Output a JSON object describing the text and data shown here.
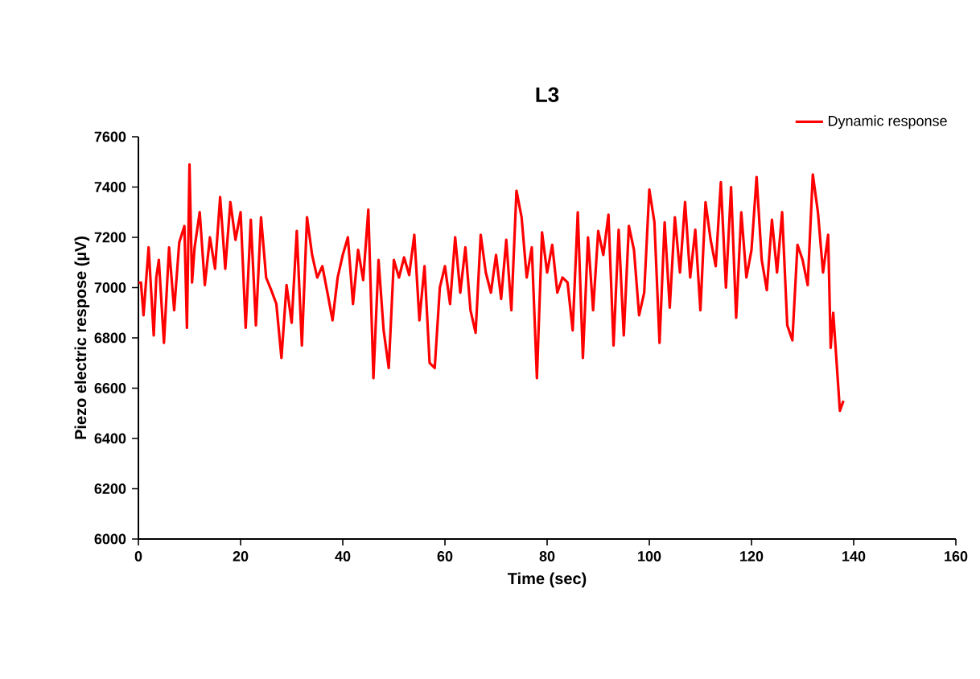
{
  "chart_data": {
    "type": "line",
    "title": "L3",
    "xlabel": "Time (sec)",
    "ylabel": "Piezo electric respose (µV)",
    "xlim": [
      0,
      160
    ],
    "xticks": [
      0,
      20,
      40,
      60,
      80,
      100,
      120,
      140,
      160
    ],
    "ylim": [
      6000,
      7600
    ],
    "yticks": [
      6000,
      6200,
      6400,
      6600,
      6800,
      7000,
      7200,
      7400,
      7600
    ],
    "grid": false,
    "legend": "top right",
    "marker": "none",
    "line_style": "solid",
    "series": [
      {
        "name": "Dynamic response",
        "color": "#ff0000",
        "x": [
          0,
          0.5,
          1,
          2,
          3,
          3.5,
          4,
          5,
          6,
          7,
          8,
          9,
          9.5,
          10,
          10.5,
          11,
          12,
          13,
          14,
          15,
          16,
          17,
          18,
          19,
          20,
          21,
          22,
          23,
          24,
          25,
          26,
          27,
          28,
          29,
          30,
          31,
          32,
          33,
          34,
          35,
          36,
          37,
          38,
          39,
          40,
          41,
          42,
          43,
          44,
          45,
          46,
          47,
          48,
          49,
          50,
          51,
          52,
          53,
          54,
          55,
          56,
          57,
          58,
          59,
          60,
          61,
          62,
          63,
          64,
          65,
          66,
          67,
          68,
          69,
          70,
          71,
          72,
          73,
          74,
          75,
          76,
          77,
          78,
          79,
          80,
          81,
          82,
          83,
          84,
          85,
          86,
          87,
          88,
          89,
          90,
          91,
          92,
          93,
          94,
          95,
          96,
          97,
          98,
          99,
          100,
          101,
          102,
          103,
          104,
          105,
          106,
          107,
          108,
          109,
          110,
          111,
          112,
          113,
          114,
          115,
          116,
          117,
          118,
          119,
          120,
          121,
          122,
          123,
          124,
          125,
          126,
          127,
          128,
          129,
          130,
          131,
          132,
          133,
          134,
          135,
          135.5,
          136,
          137,
          137.3,
          138
        ],
        "values": [
          7020,
          7020,
          6890,
          7160,
          6810,
          7040,
          7110,
          6780,
          7160,
          6910,
          7180,
          7245,
          6840,
          7490,
          7020,
          7160,
          7300,
          7010,
          7200,
          7075,
          7360,
          7075,
          7340,
          7190,
          7300,
          6840,
          7270,
          6850,
          7280,
          7040,
          6990,
          6935,
          6720,
          7010,
          6860,
          7225,
          6770,
          7280,
          7130,
          7040,
          7085,
          6980,
          6870,
          7040,
          7130,
          7200,
          6935,
          7150,
          7030,
          7310,
          6640,
          7110,
          6830,
          6680,
          7110,
          7040,
          7120,
          7050,
          7210,
          6870,
          7085,
          6700,
          6680,
          7000,
          7085,
          6935,
          7200,
          6980,
          7160,
          6910,
          6820,
          7210,
          7060,
          6980,
          7130,
          6955,
          7190,
          6910,
          7385,
          7280,
          7040,
          7160,
          6640,
          7220,
          7060,
          7170,
          6980,
          7040,
          7020,
          6830,
          7300,
          6720,
          7200,
          6910,
          7225,
          7130,
          7290,
          6770,
          7230,
          6810,
          7245,
          7150,
          6890,
          6980,
          7390,
          7260,
          6780,
          7260,
          6920,
          7280,
          7060,
          7340,
          7040,
          7230,
          6910,
          7340,
          7190,
          7085,
          7420,
          7000,
          7400,
          6880,
          7300,
          7040,
          7150,
          7440,
          7110,
          6990,
          7270,
          7060,
          7300,
          6850,
          6790,
          7170,
          7110,
          7010,
          7450,
          7300,
          7060,
          7210,
          6760,
          6900,
          6600,
          6510,
          6550
        ]
      }
    ]
  }
}
